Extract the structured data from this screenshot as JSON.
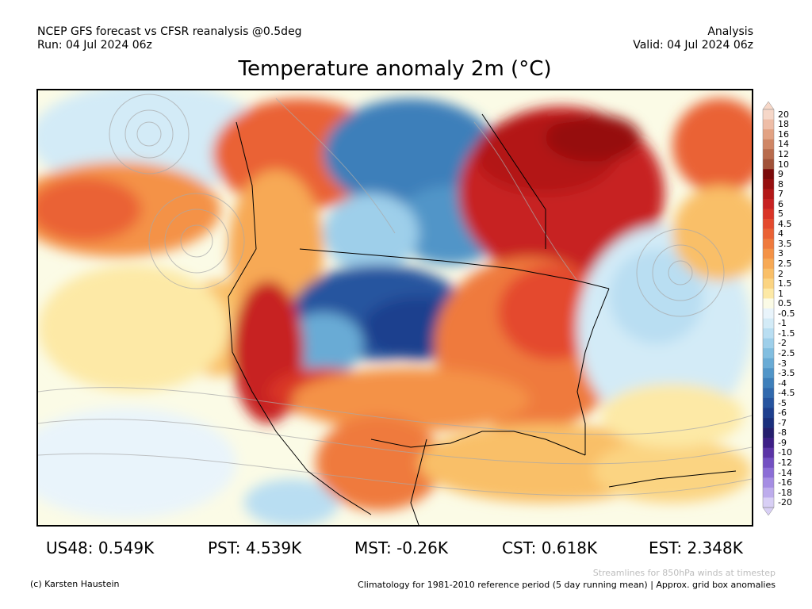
{
  "header": {
    "line1_left": "NCEP GFS forecast vs CFSR reanalysis @0.5deg",
    "line2_left": "Run: 04 Jul 2024 06z",
    "line1_right": "Analysis",
    "line2_right": "Valid: 04 Jul 2024 06z"
  },
  "title": "Temperature anomaly 2m (°C)",
  "colorbar": {
    "labels": [
      "20",
      "18",
      "16",
      "14",
      "12",
      "10",
      "9",
      "8",
      "7",
      "6",
      "5",
      "4.5",
      "4",
      "3.5",
      "3",
      "2.5",
      "2",
      "1.5",
      "1",
      "0.5",
      "-0.5",
      "-1",
      "-1.5",
      "-2",
      "-2.5",
      "-3",
      "-3.5",
      "-4",
      "-4.5",
      "-5",
      "-6",
      "-7",
      "-8",
      "-9",
      "-10",
      "-12",
      "-14",
      "-16",
      "-18",
      "-20"
    ],
    "colors": [
      "#f6d7c8",
      "#eebda7",
      "#e2a283",
      "#cf8665",
      "#b86b4c",
      "#a15238",
      "#7a0a0a",
      "#960f0f",
      "#b31818",
      "#c72222",
      "#d93427",
      "#e44a2e",
      "#ea6235",
      "#ef7a3d",
      "#f49246",
      "#f7a955",
      "#f9bf68",
      "#fbd482",
      "#fde9a6",
      "#fbfbe6",
      "#e9f4fb",
      "#d3ebf7",
      "#b9def2",
      "#9ecfea",
      "#82bee0",
      "#69abd5",
      "#5195c8",
      "#3e7fba",
      "#3169ad",
      "#26549f",
      "#1e3f8e",
      "#1a2f7c",
      "#251f6e",
      "#3d1f86",
      "#5b34a6",
      "#7350c2",
      "#8b6dd6",
      "#a58de3",
      "#bdacec",
      "#d8cff5"
    ]
  },
  "stats": {
    "us48": "US48: 0.549K",
    "pst": "PST: 4.539K",
    "mst": "MST: -0.26K",
    "cst": "CST: 0.618K",
    "est": "EST: 2.348K"
  },
  "footer": {
    "credit": "(c) Karsten Haustein",
    "streamlines_note": "Streamlines for 850hPa winds at timestep",
    "climatology_note": "Climatology for 1981-2010 reference period (5 day running mean) | Approx. grid box anomalies"
  }
}
